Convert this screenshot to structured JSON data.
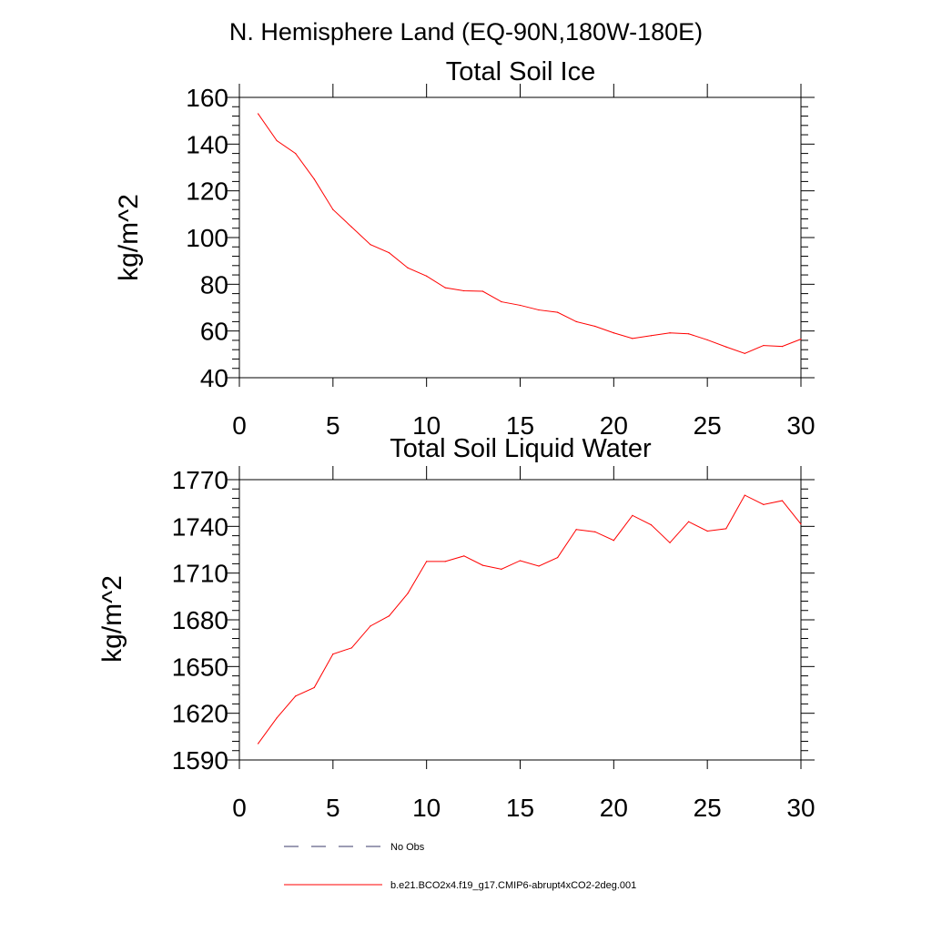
{
  "figure_title": "N. Hemisphere Land (EQ-90N,180W-180E)",
  "colors": {
    "series": "#ff0000",
    "obs": "#3a3a6a",
    "axis": "#000000"
  },
  "legend": {
    "entries": [
      {
        "label": "No Obs",
        "style": "dashed",
        "color": "#3a3a6a"
      },
      {
        "label": "b.e21.BCO2x4.f19_g17.CMIP6-abrupt4xCO2-2deg.001",
        "style": "solid",
        "color": "#ff0000"
      }
    ]
  },
  "chart_data": [
    {
      "type": "line",
      "title": "Total Soil Ice",
      "xlabel": "",
      "ylabel": "kg/m^2",
      "xlim": [
        0,
        30
      ],
      "ylim": [
        40,
        160
      ],
      "xticks": [
        0,
        5,
        10,
        15,
        20,
        25,
        30
      ],
      "yticks": [
        40,
        60,
        80,
        100,
        120,
        140,
        160
      ],
      "grid": false,
      "series": [
        {
          "color": "#ff0000",
          "x": [
            1,
            2,
            3,
            4,
            5,
            6,
            7,
            8,
            9,
            10,
            11,
            12,
            13,
            14,
            15,
            16,
            17,
            18,
            19,
            20,
            21,
            22,
            23,
            24,
            25,
            26,
            27,
            28,
            29,
            30
          ],
          "values": [
            153,
            141.5,
            136,
            125,
            112,
            104.5,
            97,
            93.5,
            87,
            83.5,
            78.5,
            77.2,
            77,
            72.5,
            71,
            69,
            68,
            64,
            62,
            59.2,
            56.8,
            58,
            59.2,
            58.8,
            56.2,
            53.2,
            50.4,
            53.8,
            53.4,
            56.5
          ]
        }
      ]
    },
    {
      "type": "line",
      "title": "Total Soil Liquid Water",
      "xlabel": "",
      "ylabel": "kg/m^2",
      "xlim": [
        0,
        30
      ],
      "ylim": [
        1590,
        1770
      ],
      "xticks": [
        0,
        5,
        10,
        15,
        20,
        25,
        30
      ],
      "yticks": [
        1590,
        1620,
        1650,
        1680,
        1710,
        1740,
        1770
      ],
      "grid": false,
      "series": [
        {
          "color": "#ff0000",
          "x": [
            1,
            2,
            3,
            4,
            5,
            6,
            7,
            8,
            9,
            10,
            11,
            12,
            13,
            14,
            15,
            16,
            17,
            18,
            19,
            20,
            21,
            22,
            23,
            24,
            25,
            26,
            27,
            28,
            29,
            30
          ],
          "values": [
            1600.5,
            1617,
            1631,
            1636.5,
            1658,
            1662,
            1676,
            1682.5,
            1697,
            1717.5,
            1717.5,
            1721,
            1715,
            1712.5,
            1718,
            1714.5,
            1720,
            1738,
            1736.5,
            1731,
            1747,
            1741,
            1729.5,
            1743,
            1737,
            1738.5,
            1760,
            1754,
            1756.5,
            1741.5
          ]
        }
      ]
    }
  ]
}
